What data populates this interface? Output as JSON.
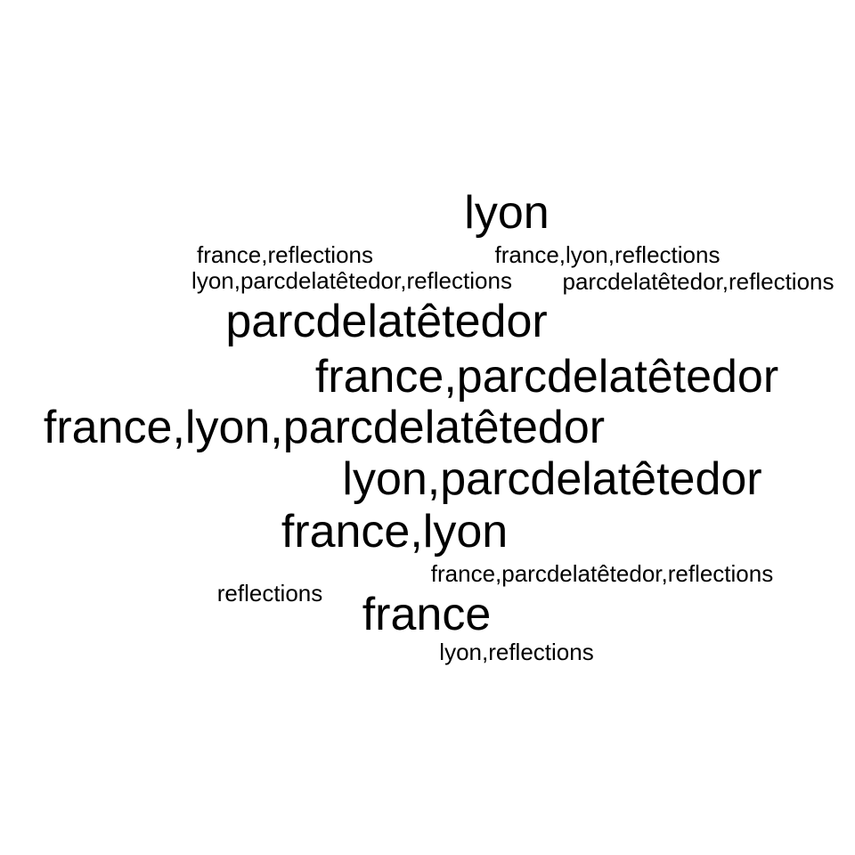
{
  "words": [
    "lyon",
    "france,reflections",
    "france,lyon,reflections",
    "lyon,parcdelatêtedor,reflections",
    "parcdelatêtedor,reflections",
    "parcdelatêtedor",
    "france,parcdelatêtedor",
    "france,lyon,parcdelatêtedor",
    "lyon,parcdelatêtedor",
    "france,lyon",
    "france,parcdelatêtedor,reflections",
    "reflections",
    "france",
    "lyon,reflections"
  ],
  "text_color": "#000000",
  "background_color": "#ffffff"
}
